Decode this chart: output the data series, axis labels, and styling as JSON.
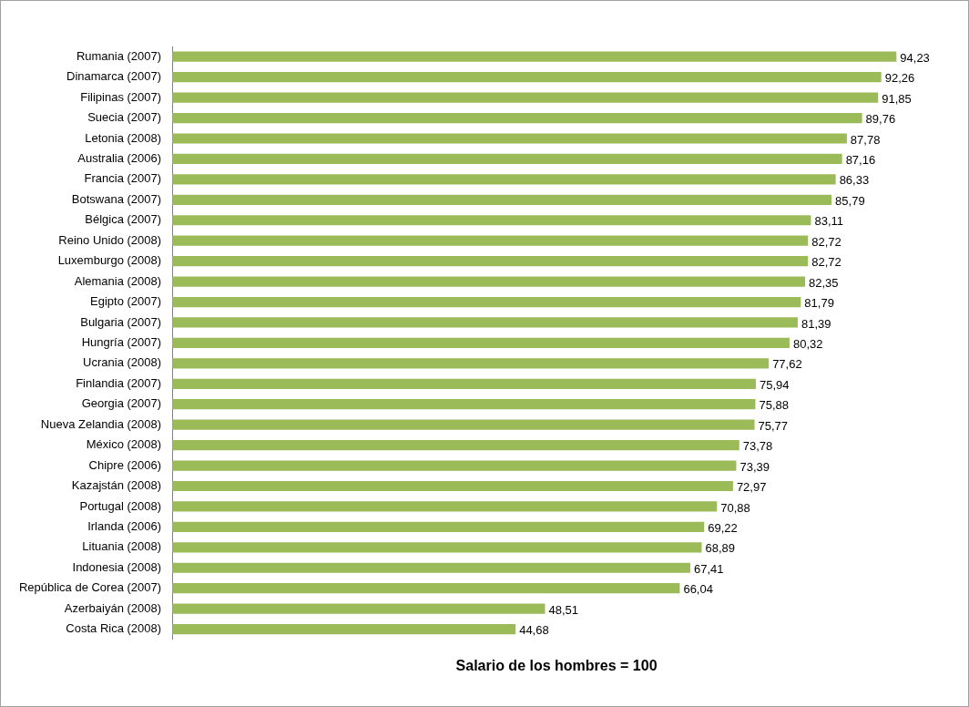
{
  "chart_data": {
    "type": "bar",
    "orientation": "horizontal",
    "xlabel": "Salario de los hombres = 100",
    "categories": [
      "Rumania (2007)",
      "Dinamarca (2007)",
      "Filipinas (2007)",
      "Suecia (2007)",
      "Letonia (2008)",
      "Australia (2006)",
      "Francia (2007)",
      "Botswana (2007)",
      "Bélgica (2007)",
      "Reino Unido (2008)",
      "Luxemburgo (2008)",
      "Alemania (2008)",
      "Egipto (2007)",
      "Bulgaria (2007)",
      "Hungría (2007)",
      "Ucrania (2008)",
      "Finlandia (2007)",
      "Georgia (2007)",
      "Nueva Zelandia (2008)",
      "México (2008)",
      "Chipre (2006)",
      "Kazajstán (2008)",
      "Portugal (2008)",
      "Irlanda (2006)",
      "Lituania (2008)",
      "Indonesia (2008)",
      "República de Corea (2007)",
      "Azerbaiyán (2008)",
      "Costa Rica (2008)"
    ],
    "values": [
      94.23,
      92.26,
      91.85,
      89.76,
      87.78,
      87.16,
      86.33,
      85.79,
      83.11,
      82.72,
      82.72,
      82.35,
      81.79,
      81.39,
      80.32,
      77.62,
      75.94,
      75.88,
      75.77,
      73.78,
      73.39,
      72.97,
      70.88,
      69.22,
      68.89,
      67.41,
      66.04,
      48.51,
      44.68
    ],
    "value_labels": [
      "94,23",
      "92,26",
      "91,85",
      "89,76",
      "87,78",
      "87,16",
      "86,33",
      "85,79",
      "83,11",
      "82,72",
      "82,72",
      "82,35",
      "81,79",
      "81,39",
      "80,32",
      "77,62",
      "75,94",
      "75,88",
      "75,77",
      "73,78",
      "73,39",
      "72,97",
      "70,88",
      "69,22",
      "68,89",
      "67,41",
      "66,04",
      "48,51",
      "44,68"
    ],
    "color": "#9bbb59",
    "grid": false,
    "legend": false
  }
}
